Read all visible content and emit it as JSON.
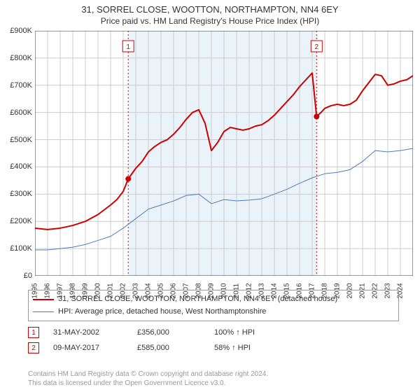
{
  "title": "31, SORREL CLOSE, WOOTTON, NORTHAMPTON, NN4 6EY",
  "subtitle": "Price paid vs. HM Land Registry's House Price Index (HPI)",
  "chart": {
    "type": "line",
    "background_color": "#ffffff",
    "highlight_band_color": "#eaf2fa",
    "grid_color": "#cccccc",
    "axis_color": "#333333",
    "tick_fontsize": 11,
    "x_years": [
      1995,
      1996,
      1997,
      1998,
      1999,
      2000,
      2001,
      2002,
      2003,
      2004,
      2005,
      2006,
      2007,
      2008,
      2009,
      2010,
      2011,
      2012,
      2013,
      2014,
      2015,
      2016,
      2017,
      2018,
      2019,
      2020,
      2021,
      2022,
      2023,
      2024
    ],
    "xlim": [
      1995,
      2025
    ],
    "ylim": [
      0,
      900
    ],
    "ytick_step": 100,
    "ytick_prefix": "£",
    "ytick_suffix": "K",
    "highlight_band": [
      2002.4,
      2017.35
    ],
    "series": [
      {
        "name": "property",
        "label": "31, SORREL CLOSE, WOOTTON, NORTHAMPTON, NN4 6EY (detached house)",
        "color": "#cc0000",
        "line_width": 2,
        "points": [
          [
            1995,
            175
          ],
          [
            1996,
            170
          ],
          [
            1997,
            175
          ],
          [
            1998,
            185
          ],
          [
            1999,
            200
          ],
          [
            2000,
            225
          ],
          [
            2001,
            260
          ],
          [
            2001.5,
            280
          ],
          [
            2002,
            310
          ],
          [
            2002.4,
            356
          ],
          [
            2003,
            395
          ],
          [
            2003.5,
            420
          ],
          [
            2004,
            455
          ],
          [
            2004.5,
            475
          ],
          [
            2005,
            490
          ],
          [
            2005.5,
            500
          ],
          [
            2006,
            520
          ],
          [
            2006.5,
            545
          ],
          [
            2007,
            575
          ],
          [
            2007.5,
            600
          ],
          [
            2008,
            610
          ],
          [
            2008.5,
            560
          ],
          [
            2009,
            460
          ],
          [
            2009.5,
            490
          ],
          [
            2010,
            530
          ],
          [
            2010.5,
            545
          ],
          [
            2011,
            540
          ],
          [
            2011.5,
            535
          ],
          [
            2012,
            540
          ],
          [
            2012.5,
            550
          ],
          [
            2013,
            555
          ],
          [
            2013.5,
            570
          ],
          [
            2014,
            590
          ],
          [
            2014.5,
            615
          ],
          [
            2015,
            640
          ],
          [
            2015.5,
            665
          ],
          [
            2016,
            695
          ],
          [
            2016.5,
            720
          ],
          [
            2017,
            745
          ],
          [
            2017.35,
            585
          ],
          [
            2017.7,
            600
          ],
          [
            2018,
            615
          ],
          [
            2018.5,
            625
          ],
          [
            2019,
            630
          ],
          [
            2019.5,
            625
          ],
          [
            2020,
            630
          ],
          [
            2020.5,
            645
          ],
          [
            2021,
            680
          ],
          [
            2021.5,
            710
          ],
          [
            2022,
            740
          ],
          [
            2022.5,
            735
          ],
          [
            2023,
            700
          ],
          [
            2023.5,
            705
          ],
          [
            2024,
            715
          ],
          [
            2024.5,
            720
          ],
          [
            2025,
            735
          ]
        ]
      },
      {
        "name": "hpi",
        "label": "HPI: Average price, detached house, West Northamptonshire",
        "color": "#4a7ebb",
        "line_width": 1,
        "points": [
          [
            1995,
            95
          ],
          [
            1996,
            95
          ],
          [
            1997,
            100
          ],
          [
            1998,
            105
          ],
          [
            1999,
            115
          ],
          [
            2000,
            130
          ],
          [
            2001,
            145
          ],
          [
            2002,
            175
          ],
          [
            2003,
            210
          ],
          [
            2004,
            245
          ],
          [
            2005,
            260
          ],
          [
            2006,
            275
          ],
          [
            2007,
            295
          ],
          [
            2008,
            300
          ],
          [
            2009,
            265
          ],
          [
            2010,
            280
          ],
          [
            2011,
            275
          ],
          [
            2012,
            278
          ],
          [
            2013,
            283
          ],
          [
            2014,
            300
          ],
          [
            2015,
            318
          ],
          [
            2016,
            340
          ],
          [
            2017,
            360
          ],
          [
            2018,
            375
          ],
          [
            2019,
            380
          ],
          [
            2020,
            390
          ],
          [
            2021,
            420
          ],
          [
            2022,
            460
          ],
          [
            2023,
            455
          ],
          [
            2024,
            460
          ],
          [
            2025,
            468
          ]
        ]
      }
    ],
    "sale_markers": [
      {
        "n": 1,
        "x": 2002.4,
        "y": 356,
        "line_color": "#cc0000",
        "box_color": "#cc0000"
      },
      {
        "n": 2,
        "x": 2017.35,
        "y": 585,
        "line_color": "#cc0000",
        "box_color": "#cc0000"
      }
    ],
    "marker_dash": "2,3",
    "marker_box_fill": "#ffffff",
    "marker_dot_radius": 4
  },
  "legend": {
    "border_color": "#999999"
  },
  "sales": [
    {
      "n": 1,
      "date": "31-MAY-2002",
      "price": "£356,000",
      "pct": "100% ↑ HPI",
      "box_color": "#cc0000"
    },
    {
      "n": 2,
      "date": "09-MAY-2017",
      "price": "£585,000",
      "pct": "58% ↑ HPI",
      "box_color": "#cc0000"
    }
  ],
  "footer": {
    "line1": "Contains HM Land Registry data © Crown copyright and database right 2024.",
    "line2": "This data is licensed under the Open Government Licence v3.0."
  }
}
